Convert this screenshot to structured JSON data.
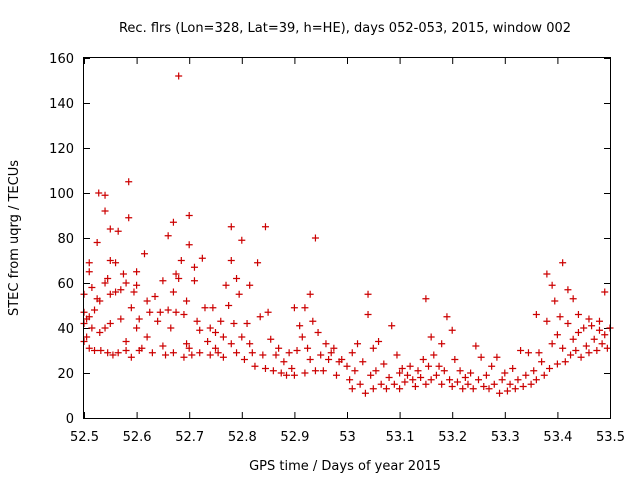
{
  "chart_data": {
    "type": "scatter",
    "title": "Rec. flrs (Lon=328, Lat=39, h=HE), days 052-053, 2015, window 002",
    "xlabel": "GPS time / Days of year 2015",
    "ylabel": "STEC from uqrg / TECUs",
    "xlim": [
      52.5,
      53.5
    ],
    "ylim": [
      0,
      160
    ],
    "x_ticks": [
      "52.5",
      "52.6",
      "52.7",
      "52.8",
      "52.9",
      "53",
      "53.1",
      "53.2",
      "53.3",
      "53.4",
      "53.5"
    ],
    "y_ticks": [
      "0",
      "20",
      "40",
      "60",
      "80",
      "100",
      "120",
      "140",
      "160"
    ],
    "grid": false,
    "legend": "none",
    "marker": "plus",
    "color": "#cc0000",
    "series": [
      {
        "points": [
          [
            52.5,
            55
          ],
          [
            52.5,
            47
          ],
          [
            52.5,
            42
          ],
          [
            52.5,
            34
          ],
          [
            52.505,
            44
          ],
          [
            52.505,
            36
          ],
          [
            52.51,
            65
          ],
          [
            52.51,
            69
          ],
          [
            52.51,
            45
          ],
          [
            52.51,
            31
          ],
          [
            52.515,
            58
          ],
          [
            52.515,
            40
          ],
          [
            52.52,
            48
          ],
          [
            52.52,
            30
          ],
          [
            52.525,
            78
          ],
          [
            52.525,
            53
          ],
          [
            52.528,
            100
          ],
          [
            52.53,
            52
          ],
          [
            52.53,
            38
          ],
          [
            52.532,
            30
          ],
          [
            52.54,
            99
          ],
          [
            52.54,
            92
          ],
          [
            52.54,
            60
          ],
          [
            52.54,
            40
          ],
          [
            52.545,
            62
          ],
          [
            52.545,
            29
          ],
          [
            52.55,
            70
          ],
          [
            52.55,
            84
          ],
          [
            52.55,
            55
          ],
          [
            52.55,
            42
          ],
          [
            52.555,
            28
          ],
          [
            52.56,
            69
          ],
          [
            52.56,
            56
          ],
          [
            52.565,
            83
          ],
          [
            52.565,
            29
          ],
          [
            52.57,
            57
          ],
          [
            52.57,
            44
          ],
          [
            52.575,
            64
          ],
          [
            52.58,
            60
          ],
          [
            52.58,
            34
          ],
          [
            52.58,
            30
          ],
          [
            52.585,
            89
          ],
          [
            52.585,
            105
          ],
          [
            52.59,
            49
          ],
          [
            52.59,
            27
          ],
          [
            52.595,
            56
          ],
          [
            52.6,
            65
          ],
          [
            52.6,
            59
          ],
          [
            52.6,
            40
          ],
          [
            52.605,
            44
          ],
          [
            52.605,
            30
          ],
          [
            52.61,
            31
          ],
          [
            52.615,
            73
          ],
          [
            52.62,
            52
          ],
          [
            52.62,
            36
          ],
          [
            52.625,
            47
          ],
          [
            52.63,
            29
          ],
          [
            52.635,
            54
          ],
          [
            52.64,
            43
          ],
          [
            52.645,
            47
          ],
          [
            52.65,
            61
          ],
          [
            52.65,
            32
          ],
          [
            52.655,
            28
          ],
          [
            52.66,
            81
          ],
          [
            52.66,
            48
          ],
          [
            52.665,
            40
          ],
          [
            52.67,
            56
          ],
          [
            52.67,
            87
          ],
          [
            52.67,
            29
          ],
          [
            52.675,
            64
          ],
          [
            52.675,
            47
          ],
          [
            52.68,
            152
          ],
          [
            52.68,
            62
          ],
          [
            52.685,
            70
          ],
          [
            52.69,
            27
          ],
          [
            52.69,
            46
          ],
          [
            52.695,
            52
          ],
          [
            52.695,
            33
          ],
          [
            52.7,
            77
          ],
          [
            52.7,
            90
          ],
          [
            52.7,
            31
          ],
          [
            52.705,
            28
          ],
          [
            52.71,
            61
          ],
          [
            52.71,
            67
          ],
          [
            52.715,
            43
          ],
          [
            52.72,
            39
          ],
          [
            52.72,
            29
          ],
          [
            52.725,
            71
          ],
          [
            52.73,
            49
          ],
          [
            52.735,
            34
          ],
          [
            52.74,
            40
          ],
          [
            52.74,
            28
          ],
          [
            52.745,
            49
          ],
          [
            52.75,
            38
          ],
          [
            52.75,
            31
          ],
          [
            52.755,
            29
          ],
          [
            52.76,
            43
          ],
          [
            52.765,
            36
          ],
          [
            52.765,
            27
          ],
          [
            52.77,
            59
          ],
          [
            52.775,
            50
          ],
          [
            52.78,
            85
          ],
          [
            52.78,
            70
          ],
          [
            52.78,
            33
          ],
          [
            52.785,
            42
          ],
          [
            52.79,
            62
          ],
          [
            52.79,
            29
          ],
          [
            52.795,
            55
          ],
          [
            52.8,
            79
          ],
          [
            52.8,
            36
          ],
          [
            52.805,
            26
          ],
          [
            52.81,
            42
          ],
          [
            52.815,
            59
          ],
          [
            52.815,
            33
          ],
          [
            52.82,
            29
          ],
          [
            52.825,
            23
          ],
          [
            52.83,
            69
          ],
          [
            52.835,
            45
          ],
          [
            52.84,
            28
          ],
          [
            52.845,
            85
          ],
          [
            52.845,
            22
          ],
          [
            52.85,
            47
          ],
          [
            52.855,
            35
          ],
          [
            52.86,
            21
          ],
          [
            52.865,
            28
          ],
          [
            52.87,
            31
          ],
          [
            52.875,
            20
          ],
          [
            52.88,
            25
          ],
          [
            52.885,
            19
          ],
          [
            52.89,
            29
          ],
          [
            52.895,
            22
          ],
          [
            52.9,
            49
          ],
          [
            52.9,
            19
          ],
          [
            52.905,
            30
          ],
          [
            52.91,
            41
          ],
          [
            52.915,
            36
          ],
          [
            52.92,
            49
          ],
          [
            52.92,
            20
          ],
          [
            52.925,
            31
          ],
          [
            52.93,
            55
          ],
          [
            52.93,
            26
          ],
          [
            52.935,
            43
          ],
          [
            52.94,
            80
          ],
          [
            52.94,
            21
          ],
          [
            52.945,
            38
          ],
          [
            52.95,
            28
          ],
          [
            52.955,
            21
          ],
          [
            52.96,
            33
          ],
          [
            52.965,
            26
          ],
          [
            52.97,
            29
          ],
          [
            52.975,
            31
          ],
          [
            52.98,
            19
          ],
          [
            52.985,
            25
          ],
          [
            52.99,
            26
          ],
          [
            53.0,
            23
          ],
          [
            53.005,
            17
          ],
          [
            53.01,
            29
          ],
          [
            53.01,
            13
          ],
          [
            53.015,
            21
          ],
          [
            53.02,
            33
          ],
          [
            53.025,
            15
          ],
          [
            53.03,
            25
          ],
          [
            53.035,
            11
          ],
          [
            53.04,
            55
          ],
          [
            53.04,
            46
          ],
          [
            53.045,
            19
          ],
          [
            53.05,
            31
          ],
          [
            53.05,
            13
          ],
          [
            53.055,
            21
          ],
          [
            53.06,
            34
          ],
          [
            53.065,
            15
          ],
          [
            53.07,
            24
          ],
          [
            53.075,
            13
          ],
          [
            53.08,
            18
          ],
          [
            53.085,
            41
          ],
          [
            53.09,
            15
          ],
          [
            53.095,
            28
          ],
          [
            53.1,
            20
          ],
          [
            53.1,
            13
          ],
          [
            53.105,
            22
          ],
          [
            53.11,
            16
          ],
          [
            53.115,
            19
          ],
          [
            53.12,
            23
          ],
          [
            53.125,
            17
          ],
          [
            53.13,
            14
          ],
          [
            53.135,
            21
          ],
          [
            53.14,
            18
          ],
          [
            53.145,
            26
          ],
          [
            53.15,
            53
          ],
          [
            53.15,
            15
          ],
          [
            53.155,
            23
          ],
          [
            53.16,
            36
          ],
          [
            53.16,
            17
          ],
          [
            53.165,
            28
          ],
          [
            53.17,
            19
          ],
          [
            53.175,
            23
          ],
          [
            53.18,
            33
          ],
          [
            53.18,
            15
          ],
          [
            53.185,
            21
          ],
          [
            53.19,
            45
          ],
          [
            53.195,
            17
          ],
          [
            53.2,
            39
          ],
          [
            53.2,
            14
          ],
          [
            53.205,
            26
          ],
          [
            53.21,
            16
          ],
          [
            53.215,
            21
          ],
          [
            53.22,
            13
          ],
          [
            53.225,
            18
          ],
          [
            53.23,
            15
          ],
          [
            53.235,
            20
          ],
          [
            53.24,
            13
          ],
          [
            53.245,
            32
          ],
          [
            53.25,
            17
          ],
          [
            53.255,
            27
          ],
          [
            53.26,
            14
          ],
          [
            53.265,
            19
          ],
          [
            53.27,
            13
          ],
          [
            53.275,
            23
          ],
          [
            53.28,
            15
          ],
          [
            53.285,
            27
          ],
          [
            53.29,
            11
          ],
          [
            53.295,
            17
          ],
          [
            53.3,
            20
          ],
          [
            53.305,
            12
          ],
          [
            53.31,
            15
          ],
          [
            53.315,
            22
          ],
          [
            53.32,
            13
          ],
          [
            53.325,
            17
          ],
          [
            53.33,
            30
          ],
          [
            53.335,
            14
          ],
          [
            53.34,
            19
          ],
          [
            53.345,
            29
          ],
          [
            53.35,
            15
          ],
          [
            53.355,
            21
          ],
          [
            53.36,
            46
          ],
          [
            53.36,
            17
          ],
          [
            53.365,
            29
          ],
          [
            53.37,
            25
          ],
          [
            53.375,
            19
          ],
          [
            53.38,
            64
          ],
          [
            53.38,
            43
          ],
          [
            53.385,
            22
          ],
          [
            53.39,
            59
          ],
          [
            53.39,
            33
          ],
          [
            53.395,
            52
          ],
          [
            53.4,
            37
          ],
          [
            53.4,
            24
          ],
          [
            53.405,
            45
          ],
          [
            53.41,
            69
          ],
          [
            53.41,
            31
          ],
          [
            53.415,
            25
          ],
          [
            53.42,
            57
          ],
          [
            53.42,
            42
          ],
          [
            53.425,
            28
          ],
          [
            53.43,
            53
          ],
          [
            53.43,
            35
          ],
          [
            53.435,
            30
          ],
          [
            53.44,
            46
          ],
          [
            53.44,
            38
          ],
          [
            53.445,
            27
          ],
          [
            53.45,
            40
          ],
          [
            53.455,
            32
          ],
          [
            53.46,
            44
          ],
          [
            53.46,
            29
          ],
          [
            53.465,
            41
          ],
          [
            53.47,
            35
          ],
          [
            53.475,
            30
          ],
          [
            53.48,
            43
          ],
          [
            53.48,
            39
          ],
          [
            53.485,
            33
          ],
          [
            53.49,
            56
          ],
          [
            53.49,
            37
          ],
          [
            53.495,
            31
          ],
          [
            53.5,
            40
          ]
        ]
      }
    ]
  }
}
